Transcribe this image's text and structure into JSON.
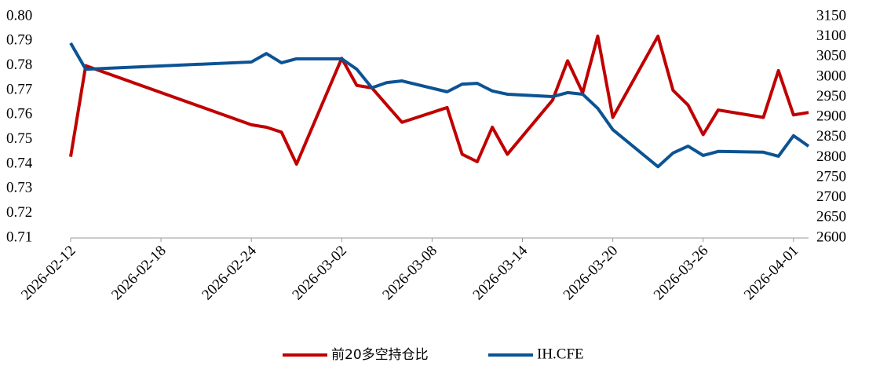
{
  "chart_data": {
    "type": "line",
    "x": [
      "2026-02-12",
      "2026-02-13",
      "2026-02-24",
      "2026-02-25",
      "2026-02-26",
      "2026-02-27",
      "2026-03-02",
      "2026-03-03",
      "2026-03-04",
      "2026-03-05",
      "2026-03-06",
      "2026-03-09",
      "2026-03-10",
      "2026-03-11",
      "2026-03-12",
      "2026-03-13",
      "2026-03-16",
      "2026-03-17",
      "2026-03-18",
      "2026-03-19",
      "2026-03-20",
      "2026-03-23",
      "2026-03-24",
      "2026-03-25",
      "2026-03-26",
      "2026-03-27",
      "2026-03-30",
      "2026-03-31",
      "2026-04-01",
      "2026-04-02"
    ],
    "xlim": [
      "2026-02-12",
      "2026-04-02"
    ],
    "xticks": [
      "2026-02-12",
      "2026-02-18",
      "2026-02-24",
      "2026-03-02",
      "2026-03-08",
      "2026-03-14",
      "2026-03-20",
      "2026-03-26",
      "2026-04-01"
    ],
    "ylim": [
      0.71,
      0.8
    ],
    "yticks": [
      0.71,
      0.72,
      0.73,
      0.74,
      0.75,
      0.76,
      0.77,
      0.78,
      0.79,
      {
        "value": 0.8,
        "label": "0.80"
      }
    ],
    "y2lim": [
      2600,
      3150
    ],
    "y2ticks": [
      2600,
      2650,
      2700,
      2750,
      2800,
      2850,
      2900,
      2950,
      3000,
      3050,
      3100,
      3150
    ],
    "series": [
      {
        "name": "前20多空持仓比",
        "color": "#c00000",
        "values": [
          0.743,
          0.78,
          0.756,
          0.755,
          0.753,
          0.74,
          0.783,
          0.772,
          0.771,
          0.764,
          0.757,
          0.763,
          0.744,
          0.741,
          0.755,
          0.744,
          0.766,
          0.782,
          0.769,
          0.792,
          0.759,
          0.792,
          0.77,
          0.764,
          0.752,
          0.762,
          0.759,
          0.778,
          0.76,
          0.761
        ]
      },
      {
        "name": "IH.CFE",
        "color": "#0b5394",
        "axis": "y2",
        "values": [
          3084,
          3019,
          3037,
          3058,
          3035,
          3045,
          3045,
          3019,
          2973,
          2986,
          2990,
          2963,
          2982,
          2984,
          2965,
          2957,
          2951,
          2961,
          2957,
          2922,
          2869,
          2777,
          2811,
          2828,
          2805,
          2815,
          2813,
          2803,
          2854,
          2828
        ]
      }
    ]
  }
}
